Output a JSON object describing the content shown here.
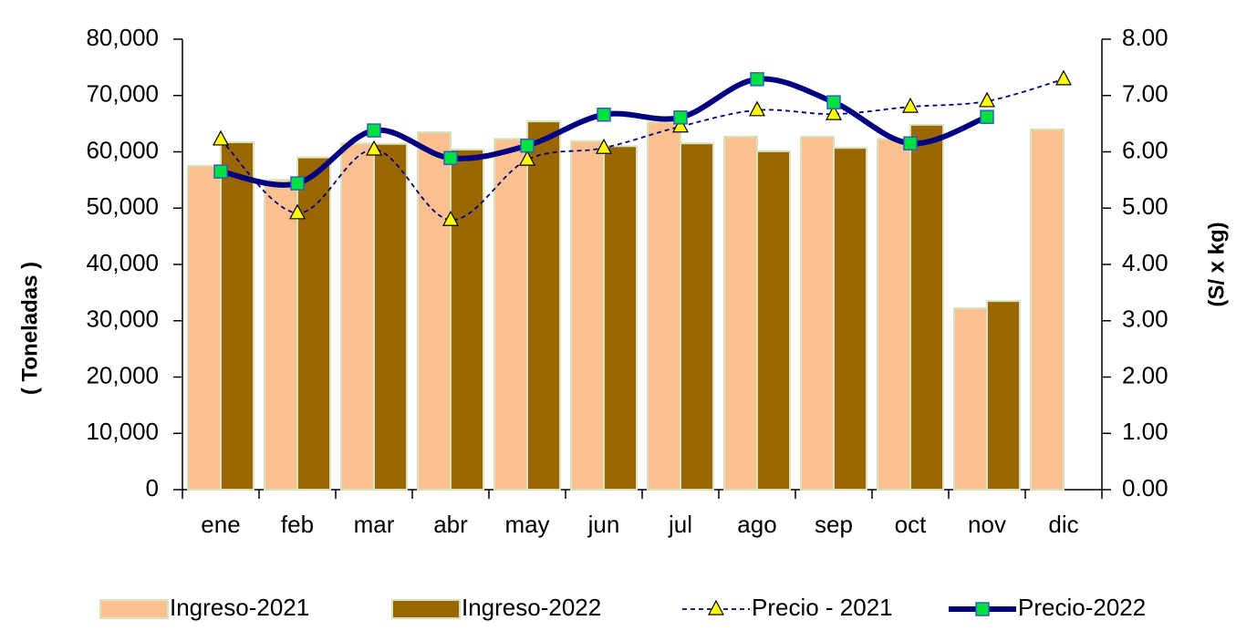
{
  "chart_data": {
    "type": "bar-line",
    "categories": [
      "ene",
      "feb",
      "mar",
      "abr",
      "may",
      "jun",
      "jul",
      "ago",
      "sep",
      "oct",
      "nov",
      "dic"
    ],
    "y_label": "( Toneladas )",
    "y2_label": "(S/ x kg)",
    "ylim": [
      0,
      80000
    ],
    "yticks": [
      0,
      {
        "value": 10000,
        "label": "10,000"
      },
      {
        "value": 20000,
        "label": "20,000"
      },
      {
        "value": 30000,
        "label": "30,000"
      },
      {
        "value": 40000,
        "label": "40,000"
      },
      {
        "value": 50000,
        "label": "50,000"
      },
      {
        "value": 60000,
        "label": "60,000"
      },
      {
        "value": 70000,
        "label": "70,000"
      },
      {
        "value": 80000,
        "label": "80,000"
      }
    ],
    "y2lim": [
      0,
      8
    ],
    "y2ticks": [
      {
        "value": 0,
        "label": "0.00"
      },
      {
        "value": 1,
        "label": "1.00"
      },
      {
        "value": 2,
        "label": "2.00"
      },
      {
        "value": 3,
        "label": "3.00"
      },
      {
        "value": 4,
        "label": "4.00"
      },
      {
        "value": 5,
        "label": "5.00"
      },
      {
        "value": 6,
        "label": "6.00"
      },
      {
        "value": 7,
        "label": "7.00"
      },
      {
        "value": 8,
        "label": "8.00"
      }
    ],
    "legend": "bottom",
    "series": [
      {
        "name": "Ingreso-2021",
        "type": "bar",
        "color": "#fac090",
        "values": [
          57500,
          55000,
          61500,
          63500,
          62300,
          61900,
          65300,
          62700,
          62700,
          62300,
          32200,
          64000
        ]
      },
      {
        "name": "Ingreso-2022",
        "type": "bar",
        "color": "#996600",
        "values": [
          61700,
          59000,
          61400,
          60400,
          65400,
          61000,
          61500,
          60100,
          60700,
          64800,
          33500,
          null
        ]
      },
      {
        "name": "Precio - 2021",
        "type": "line",
        "axis": "y2",
        "color": "#000080",
        "marker": "triangle",
        "values": [
          6.22,
          4.91,
          6.04,
          4.79,
          5.86,
          6.07,
          6.45,
          6.74,
          6.67,
          6.8,
          6.9,
          7.29
        ]
      },
      {
        "name": "Precio-2022",
        "type": "line",
        "axis": "y2",
        "color": "#000080",
        "marker": "square",
        "values": [
          5.65,
          5.44,
          6.38,
          5.89,
          6.11,
          6.66,
          6.61,
          7.29,
          6.88,
          6.15,
          6.62,
          null
        ]
      }
    ]
  }
}
